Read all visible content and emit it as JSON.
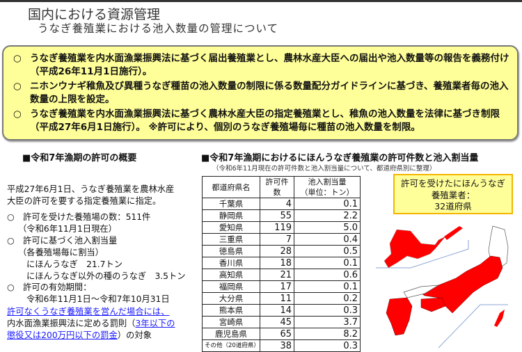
{
  "header": {
    "title": "国内における資源管理",
    "subtitle": "うなぎ養殖業における池入数量の管理について"
  },
  "summary_box": {
    "bullet": "○",
    "items": [
      "うなぎ養殖業を内水面漁業振興法に基づく届出養殖業とし、農林水産大臣への届出や池入数量等の報告を義務付け（平成26年11月1日施行）。",
      "ニホンウナギ稚魚及び異種うなぎ種苗の池入数量の制限に係る数量配分ガイドラインに基づき、養殖業者毎の池入数量の上限を設定。",
      "うなぎ養殖業を内水面漁業振興法に基づく農林水産大臣の指定養殖業とし、稚魚の池入数量を法律に基づき制限（平成27年6月1日施行）。 ※許可により、個別のうなぎ養殖場毎に種苗の池入数量を制限。"
    ]
  },
  "overview": {
    "heading": "■令和7年漁期の許可の概要",
    "intro1": "平成27年6月1日、うなぎ養殖業を農林水産",
    "intro2": "大臣の許可を要する指定養殖業に指定。",
    "l1": "○　許可を受けた養殖場の数：511件",
    "l2": "（令和6年11月1日現在）",
    "l3": "○　許可に基づく池入割当量",
    "l4": "（各養殖場毎に割当）",
    "l5": "にほんうなぎ　21.7トン",
    "l6": "にほんうなぎ以外の種のうなぎ　3.5トン",
    "l7": "○　許可の有効期間：",
    "l8": "令和6年11月1日～令和7年10月31日",
    "link1": "許可なくうなぎ養殖業を営んだ場合には、",
    "p1": "内水面漁業振興法に定める罰則（",
    "link2a": "3年以下の",
    "link2b": "懲役又は200万円以下の罰金",
    "p2": "）の対象"
  },
  "table_section": {
    "heading": "■令和7年漁期におけるにほんうなぎ養殖業の許可件数と池入割当量",
    "note": "（令和6年11月現在の許可件数と池入割当量について、都道府県別に整理）",
    "columns": [
      "都道府県名",
      "許可件数",
      "池入割当量",
      "（単位：トン）"
    ],
    "rows": [
      [
        "千葉県",
        "4",
        "0.1"
      ],
      [
        "静岡県",
        "55",
        "2.2"
      ],
      [
        "愛知県",
        "119",
        "5.0"
      ],
      [
        "三重県",
        "7",
        "0.4"
      ],
      [
        "徳島県",
        "28",
        "0.5"
      ],
      [
        "香川県",
        "18",
        "0.1"
      ],
      [
        "高知県",
        "21",
        "0.6"
      ],
      [
        "福岡県",
        "17",
        "0.1"
      ],
      [
        "大分県",
        "11",
        "0.2"
      ],
      [
        "熊本県",
        "14",
        "0.3"
      ],
      [
        "宮崎県",
        "45",
        "3.7"
      ],
      [
        "鹿児島県",
        "65",
        "8.2"
      ],
      [
        "その他（20道府県）",
        "38",
        "0.3"
      ]
    ]
  },
  "map_callout": {
    "line1": "許可を受けたにほんうなぎ",
    "line2": "養殖業者：",
    "line3": "32道府県"
  },
  "colors": {
    "box_fill": "#ffff99",
    "map_red": "#ff0000",
    "link": "#1a1aff",
    "callout_border": "#f4b400"
  }
}
